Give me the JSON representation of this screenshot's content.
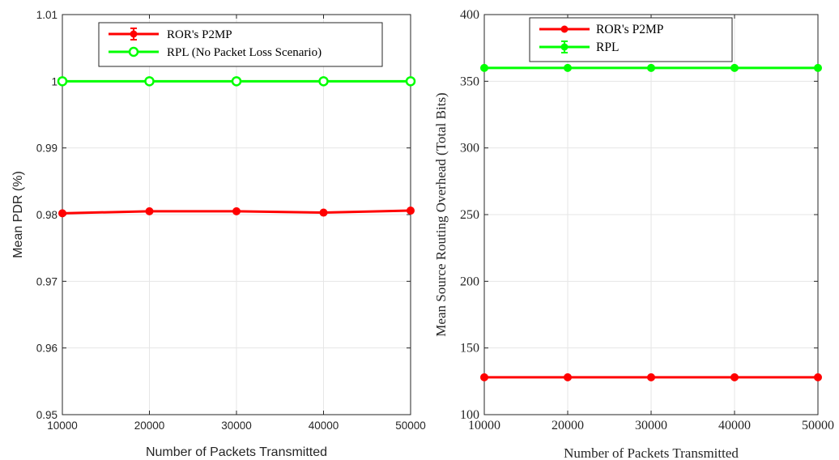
{
  "chart_data": [
    {
      "type": "line",
      "title": "",
      "xlabel": "Number of Packets Transmitted",
      "ylabel": "Mean PDR (%)",
      "x": [
        10000,
        20000,
        30000,
        40000,
        50000
      ],
      "xticks": [
        "10000",
        "20000",
        "30000",
        "40000",
        "50000"
      ],
      "xlim": [
        10000,
        50000
      ],
      "yticks": [
        "0.95",
        "0.96",
        "0.97",
        "0.98",
        "0.99",
        "1",
        "1.01"
      ],
      "ylim": [
        0.95,
        1.01
      ],
      "grid": true,
      "legend_position": "top-center",
      "series": [
        {
          "name": "ROR's P2MP",
          "color": "#ff0000",
          "marker": "filled-circle",
          "error_bars": true,
          "values": [
            0.9802,
            0.9805,
            0.9805,
            0.9803,
            0.9806
          ]
        },
        {
          "name": "RPL (No Packet Loss Scenario)",
          "color": "#00ff00",
          "marker": "open-circle",
          "error_bars": false,
          "values": [
            1.0,
            1.0,
            1.0,
            1.0,
            1.0
          ]
        }
      ]
    },
    {
      "type": "line",
      "title": "",
      "xlabel": "Number of Packets Transmitted",
      "ylabel": "Mean Source Routing Overhead (Total Bits)",
      "x": [
        10000,
        20000,
        30000,
        40000,
        50000
      ],
      "xticks": [
        "10000",
        "20000",
        "30000",
        "40000",
        "50000"
      ],
      "xlim": [
        10000,
        50000
      ],
      "yticks": [
        "100",
        "150",
        "200",
        "250",
        "300",
        "350",
        "400"
      ],
      "ylim": [
        100,
        400
      ],
      "grid": true,
      "legend_position": "top-center",
      "series": [
        {
          "name": "ROR's P2MP",
          "color": "#ff0000",
          "marker": "filled-circle",
          "error_bars": false,
          "values": [
            128,
            128,
            128,
            128,
            128
          ]
        },
        {
          "name": "RPL",
          "color": "#00ff00",
          "marker": "filled-circle",
          "error_bars": true,
          "values": [
            360,
            360,
            360,
            360,
            360
          ]
        }
      ]
    }
  ]
}
